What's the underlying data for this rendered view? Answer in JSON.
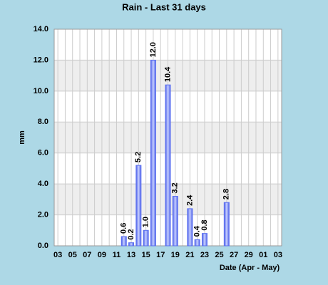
{
  "chart_data": {
    "type": "bar",
    "title": "Rain - Last 31 days",
    "x_label": "Date (Apr - May)",
    "y_label": "mm",
    "categories": [
      "03",
      null,
      "05",
      null,
      "07",
      null,
      "09",
      null,
      "11",
      null,
      "13",
      null,
      "15",
      null,
      "17",
      null,
      "19",
      null,
      "21",
      null,
      "23",
      null,
      "25",
      null,
      "27",
      null,
      "29",
      null,
      "01",
      null,
      "03"
    ],
    "values": [
      null,
      null,
      null,
      null,
      null,
      null,
      null,
      null,
      null,
      0.6,
      0.2,
      5.2,
      1.0,
      12.0,
      null,
      10.4,
      3.2,
      null,
      2.4,
      0.4,
      0.8,
      null,
      null,
      2.8,
      null,
      null,
      null,
      null,
      null,
      null,
      null
    ],
    "value_labels": [
      null,
      null,
      null,
      null,
      null,
      null,
      null,
      null,
      null,
      "0.6",
      "0.2",
      "5.2",
      "1.0",
      "12.0",
      null,
      "10.4",
      "3.2",
      null,
      "2.4",
      "0.4",
      "0.8",
      null,
      null,
      "2.8",
      null,
      null,
      null,
      null,
      null,
      null,
      null
    ],
    "color": "#5a6ff0",
    "ylim": [
      0,
      14
    ],
    "yticks": [
      {
        "value": 0,
        "label": "0.0"
      },
      {
        "value": 2,
        "label": "2.0"
      },
      {
        "value": 4,
        "label": "4.0"
      },
      {
        "value": 6,
        "label": "6.0"
      },
      {
        "value": 8,
        "label": "8.0"
      },
      {
        "value": 10,
        "label": "10.0"
      },
      {
        "value": 12,
        "label": "12.0"
      },
      {
        "value": 14,
        "label": "14.0"
      }
    ],
    "grid": true
  }
}
